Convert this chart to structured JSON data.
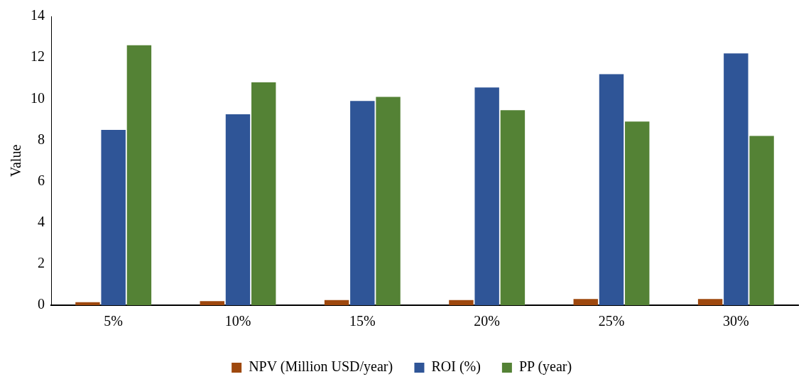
{
  "chart_data": {
    "type": "bar",
    "ylabel": "Value",
    "categories": [
      "5%",
      "10%",
      "15%",
      "20%",
      "25%",
      "30%"
    ],
    "series": [
      {
        "name": "NPV (Million USD/year)",
        "color": "#9e480e",
        "values": [
          0.15,
          0.2,
          0.25,
          0.25,
          0.3,
          0.3
        ]
      },
      {
        "name": "ROI (%)",
        "color": "#2f5597",
        "values": [
          8.5,
          9.25,
          9.9,
          10.55,
          11.2,
          12.2
        ]
      },
      {
        "name": "PP (year)",
        "color": "#548235",
        "values": [
          12.6,
          10.8,
          10.1,
          9.45,
          8.9,
          8.2
        ]
      }
    ],
    "ylim": [
      0,
      14
    ],
    "yticks": [
      0,
      2,
      4,
      6,
      8,
      10,
      12,
      14
    ],
    "grid": false,
    "legend": "bottom"
  }
}
